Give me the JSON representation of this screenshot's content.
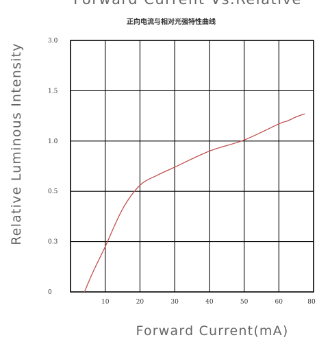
{
  "chart_data": {
    "type": "line",
    "title": "Forward Current  Vs.Relative",
    "subtitle": "正向电流与相对光强特性曲线",
    "xlabel": "Forward Current(mA)",
    "ylabel": "Relative Luminous Intensity",
    "x_tick_labels": [
      "10",
      "20",
      "30",
      "40",
      "50",
      "60",
      "80"
    ],
    "y_tick_labels": [
      "0",
      "0.3",
      "0.5",
      "1.0",
      "1.5",
      "3.0"
    ],
    "grid": true,
    "series": [
      {
        "color": "#c0504d",
        "points": [
          {
            "x": 4,
            "y": 0.0
          },
          {
            "x": 6.5,
            "y": 0.12
          },
          {
            "x": 10,
            "y": 0.27
          },
          {
            "x": 15,
            "y": 0.43
          },
          {
            "x": 20,
            "y": 0.56
          },
          {
            "x": 25,
            "y": 0.66
          },
          {
            "x": 30,
            "y": 0.74
          },
          {
            "x": 40,
            "y": 0.9
          },
          {
            "x": 50,
            "y": 1.01
          },
          {
            "x": 60,
            "y": 1.17
          },
          {
            "x": 65,
            "y": 1.2
          },
          {
            "x": 70,
            "y": 1.24
          },
          {
            "x": 75,
            "y": 1.27
          }
        ]
      }
    ]
  }
}
